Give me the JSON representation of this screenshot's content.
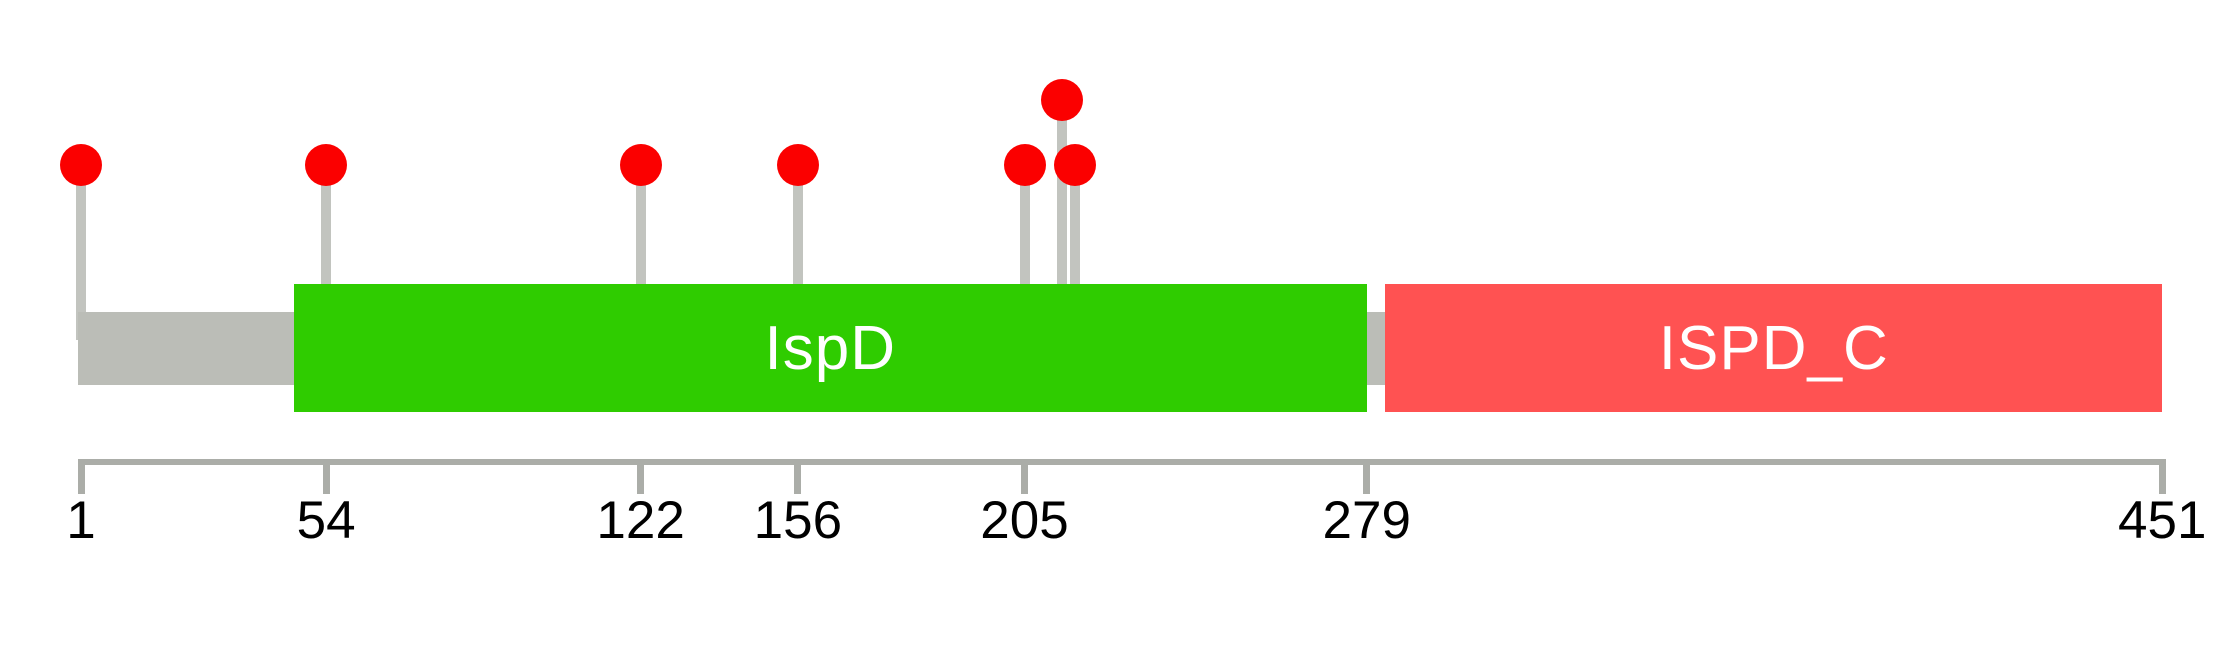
{
  "figure": {
    "kind": "protein mutation lollipop diagram",
    "background_color": "#FFFFFF"
  },
  "chart_data": {
    "type": "lollipop",
    "title": "",
    "protein": {
      "start": 1,
      "length": 451
    },
    "axis": {
      "tick_values": [
        1,
        54,
        122,
        156,
        205,
        279,
        451
      ],
      "tick_labels": [
        "1",
        "54",
        "122",
        "156",
        "205",
        "279",
        "451"
      ],
      "range": [
        1,
        451
      ],
      "color": "#ABADA8",
      "label_color": "#000000"
    },
    "backbone": {
      "start": 1,
      "end": 451,
      "color": "#BBBDB7"
    },
    "domains": [
      {
        "label": "IspD",
        "start": 47,
        "end": 279,
        "color": "#2FCC00",
        "label_color": "#FFFFFF"
      },
      {
        "label": "ISPD_C",
        "start": 283,
        "end": 451,
        "color": "#FF5252",
        "label_color": "#FFFFFF"
      }
    ],
    "mutations": [
      {
        "position": 1,
        "stem": "normal"
      },
      {
        "position": 54,
        "stem": "normal"
      },
      {
        "position": 122,
        "stem": "normal"
      },
      {
        "position": 156,
        "stem": "normal"
      },
      {
        "position": 205,
        "stem": "normal"
      },
      {
        "position": 213,
        "stem": "tall"
      },
      {
        "position": 216,
        "stem": "normal"
      }
    ],
    "marker_color": "#FB0000",
    "stem_color": "#C2C4BF",
    "legend": null,
    "grid": false
  }
}
